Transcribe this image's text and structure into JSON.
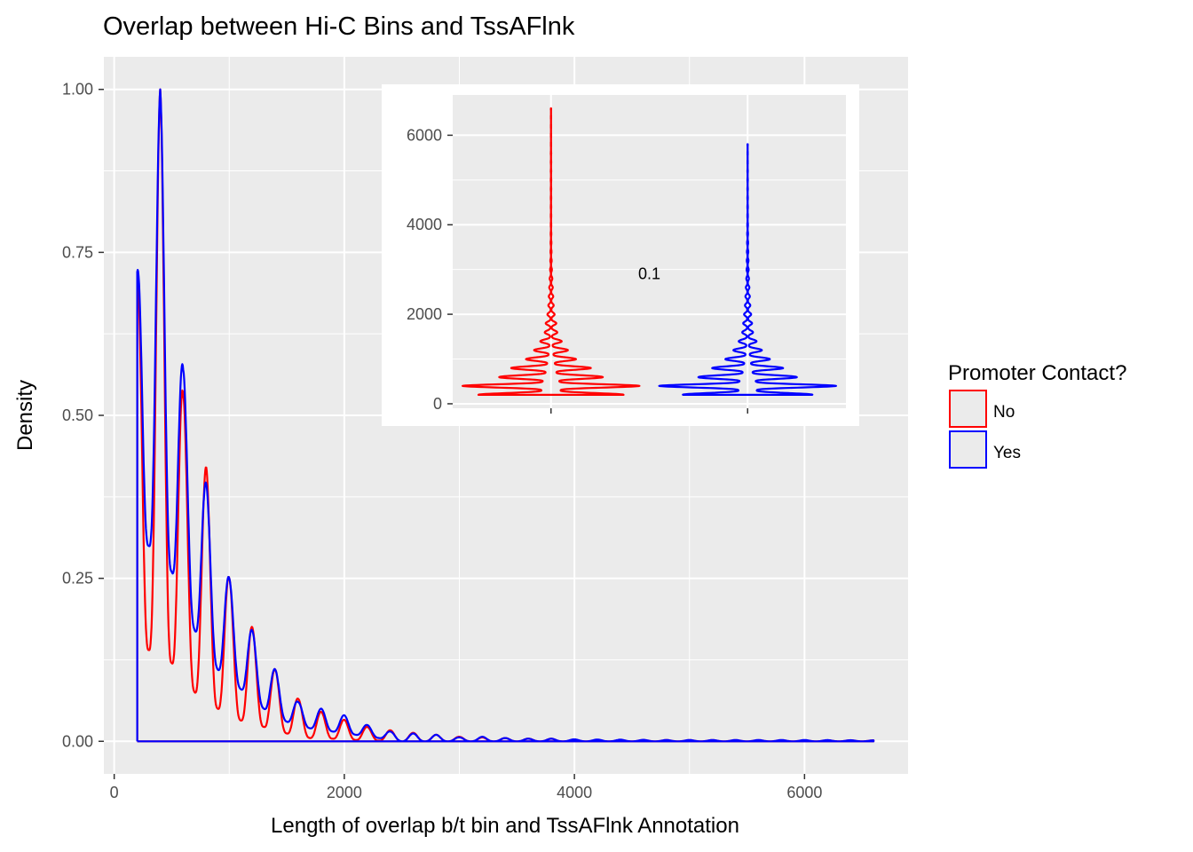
{
  "chart_data": [
    {
      "type": "line",
      "title": "Overlap between Hi-C Bins and TssAFlnk",
      "xlabel": "Length of overlap b/t bin and TssAFlnk Annotation",
      "ylabel": "Density",
      "xlim": [
        -90,
        6900
      ],
      "ylim": [
        -0.05,
        1.05
      ],
      "xticks": [
        0,
        2000,
        4000,
        6000
      ],
      "xtick_labels": [
        "0",
        "2000",
        "4000",
        "6000"
      ],
      "yticks": [
        0,
        0.25,
        0.5,
        0.75,
        1.0
      ],
      "ytick_labels": [
        "0.00",
        "0.25",
        "0.50",
        "0.75",
        "1.00"
      ],
      "grid": true,
      "legend": {
        "title": "Promoter Contact?",
        "position": "right",
        "entries": [
          {
            "label": "No",
            "color": "#ff0000"
          },
          {
            "label": "Yes",
            "color": "#0000ff"
          }
        ]
      },
      "series": [
        {
          "name": "No",
          "color": "#ff0000",
          "x_start": 200,
          "x_end": 6600,
          "peaks": [
            [
              200,
              0.7
            ],
            [
              400,
              1.0
            ],
            [
              600,
              0.53
            ],
            [
              800,
              0.42
            ],
            [
              1000,
              0.25
            ],
            [
              1200,
              0.175
            ],
            [
              1400,
              0.11
            ],
            [
              1600,
              0.065
            ],
            [
              1800,
              0.045
            ],
            [
              2000,
              0.033
            ],
            [
              2200,
              0.022
            ],
            [
              2400,
              0.017
            ],
            [
              2600,
              0.013
            ],
            [
              2800,
              0.01
            ],
            [
              3000,
              0.007
            ],
            [
              3200,
              0.006
            ],
            [
              3400,
              0.005
            ],
            [
              3600,
              0.004
            ],
            [
              3800,
              0.004
            ],
            [
              4000,
              0.002
            ]
          ],
          "troughs": [
            [
              300,
              0.14
            ],
            [
              500,
              0.12
            ],
            [
              700,
              0.075
            ],
            [
              900,
              0.05
            ],
            [
              1100,
              0.032
            ],
            [
              1300,
              0.022
            ],
            [
              1500,
              0.012
            ],
            [
              1700,
              0.005
            ],
            [
              1900,
              0.004
            ],
            [
              2100,
              0.002
            ]
          ]
        },
        {
          "name": "Yes",
          "color": "#0000ff",
          "x_start": 200,
          "x_end": 6600,
          "peaks": [
            [
              200,
              0.72
            ],
            [
              400,
              1.0
            ],
            [
              600,
              0.57
            ],
            [
              800,
              0.395
            ],
            [
              1000,
              0.25
            ],
            [
              1200,
              0.17
            ],
            [
              1400,
              0.11
            ],
            [
              1600,
              0.06
            ],
            [
              1800,
              0.05
            ],
            [
              2000,
              0.04
            ],
            [
              2200,
              0.025
            ],
            [
              2400,
              0.015
            ],
            [
              2600,
              0.012
            ],
            [
              2800,
              0.01
            ],
            [
              3000,
              0.006
            ],
            [
              3200,
              0.007
            ],
            [
              3400,
              0.005
            ],
            [
              3600,
              0.004
            ],
            [
              3800,
              0.004
            ],
            [
              4000,
              0.003
            ],
            [
              4800,
              0.002
            ],
            [
              5200,
              0.002
            ],
            [
              5600,
              0.002
            ],
            [
              6000,
              0.002
            ]
          ],
          "troughs": [
            [
              300,
              0.3
            ],
            [
              500,
              0.26
            ],
            [
              700,
              0.17
            ],
            [
              900,
              0.11
            ],
            [
              1100,
              0.08
            ],
            [
              1300,
              0.05
            ],
            [
              1500,
              0.03
            ],
            [
              1700,
              0.02
            ],
            [
              1900,
              0.015
            ],
            [
              2100,
              0.01
            ]
          ]
        }
      ]
    },
    {
      "type": "violin",
      "inset": true,
      "ylim": [
        -100,
        6900
      ],
      "yticks": [
        0,
        2000,
        4000,
        6000
      ],
      "ytick_labels": [
        "0",
        "2000",
        "4000",
        "6000"
      ],
      "grid": true,
      "annotation": "0.1",
      "annotation_at": {
        "group_fraction": 0.5,
        "y": 2900
      },
      "groups": [
        {
          "name": "No",
          "color": "#ff0000",
          "y_min": 200,
          "y_max": 6600,
          "profile": [
            [
              400,
              1.0
            ],
            [
              200,
              0.82
            ],
            [
              600,
              0.58
            ],
            [
              800,
              0.45
            ],
            [
              1000,
              0.28
            ],
            [
              1200,
              0.19
            ],
            [
              1400,
              0.12
            ],
            [
              1600,
              0.07
            ],
            [
              1800,
              0.06
            ],
            [
              2000,
              0.04
            ],
            [
              2200,
              0.03
            ],
            [
              2400,
              0.025
            ],
            [
              2600,
              0.02
            ],
            [
              2800,
              0.015
            ],
            [
              3000,
              0.01
            ],
            [
              3200,
              0.008
            ],
            [
              3400,
              0.006
            ],
            [
              3600,
              0.005
            ]
          ]
        },
        {
          "name": "Yes",
          "color": "#0000ff",
          "y_min": 200,
          "y_max": 5800,
          "profile": [
            [
              400,
              1.0
            ],
            [
              200,
              0.73
            ],
            [
              600,
              0.55
            ],
            [
              800,
              0.4
            ],
            [
              1000,
              0.25
            ],
            [
              1200,
              0.16
            ],
            [
              1400,
              0.1
            ],
            [
              1600,
              0.06
            ],
            [
              1800,
              0.05
            ],
            [
              2000,
              0.04
            ],
            [
              2200,
              0.03
            ],
            [
              2400,
              0.025
            ],
            [
              2600,
              0.02
            ],
            [
              2800,
              0.015
            ],
            [
              3000,
              0.012
            ],
            [
              3200,
              0.01
            ],
            [
              3400,
              0.008
            ],
            [
              3600,
              0.006
            ],
            [
              3800,
              0.005
            ]
          ]
        }
      ]
    }
  ]
}
